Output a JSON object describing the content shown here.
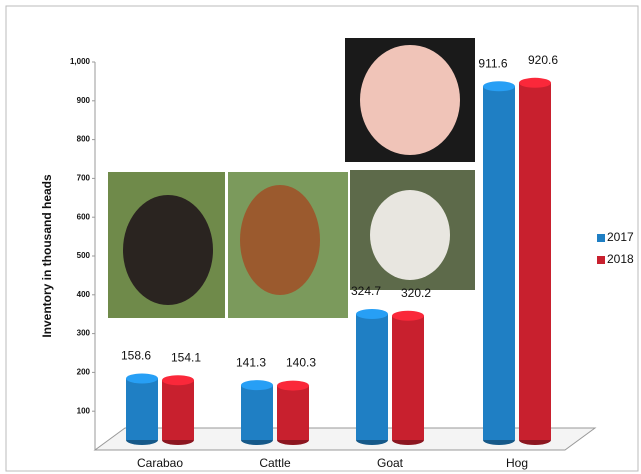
{
  "chart_data": {
    "type": "bar",
    "y_label": "Inventory in thousand  heads",
    "categories": [
      "Carabao",
      "Cattle",
      "Goat",
      "Hog"
    ],
    "series": [
      {
        "name": "2017",
        "color": "#1f7fc4",
        "values": [
          158.6,
          141.3,
          324.7,
          911.6
        ]
      },
      {
        "name": "2018",
        "color": "#c8202e",
        "values": [
          154.1,
          140.3,
          320.2,
          920.6
        ]
      }
    ],
    "ylim": [
      0,
      1000
    ],
    "yticks": [
      100,
      200,
      300,
      400,
      500,
      600,
      700,
      800,
      900,
      {
        "value": 1000,
        "label": "1,000"
      }
    ],
    "legend": "right"
  }
}
